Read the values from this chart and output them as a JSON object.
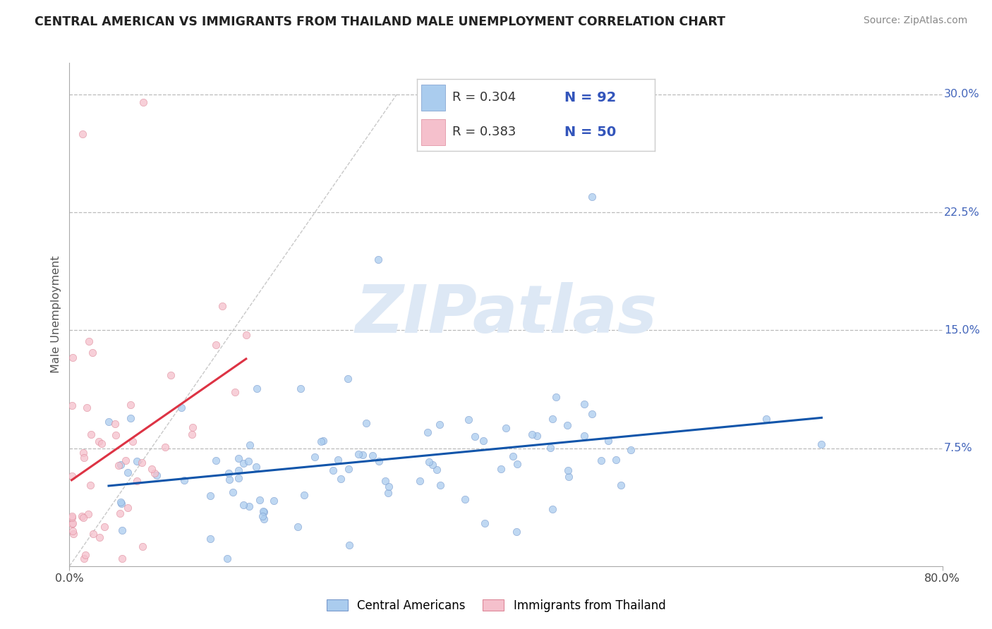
{
  "title": "CENTRAL AMERICAN VS IMMIGRANTS FROM THAILAND MALE UNEMPLOYMENT CORRELATION CHART",
  "source": "Source: ZipAtlas.com",
  "ylabel": "Male Unemployment",
  "xlim": [
    0.0,
    0.8
  ],
  "ylim": [
    0.0,
    0.32
  ],
  "yticks": [
    0.075,
    0.15,
    0.225,
    0.3
  ],
  "ytick_labels": [
    "7.5%",
    "15.0%",
    "22.5%",
    "30.0%"
  ],
  "xtick_positions": [
    0.0,
    0.8
  ],
  "xtick_labels": [
    "0.0%",
    "80.0%"
  ],
  "series1_label": "Central Americans",
  "series1_R": "0.304",
  "series1_N": "92",
  "series1_color": "#aaccee",
  "series1_edge": "#7799cc",
  "series1_line_color": "#1155aa",
  "series2_label": "Immigrants from Thailand",
  "series2_R": "0.383",
  "series2_N": "50",
  "series2_color": "#f5c0cc",
  "series2_edge": "#dd8899",
  "series2_line_color": "#dd3344",
  "legend_text_color": "#333333",
  "legend_N_color": "#3355bb",
  "background_color": "#ffffff",
  "grid_color": "#bbbbbb",
  "title_color": "#222222",
  "watermark_text": "ZIPatlas",
  "watermark_color": "#dde8f5",
  "axis_label_color": "#555555",
  "ytick_color": "#4466bb",
  "xtick_color": "#444444",
  "source_color": "#888888"
}
